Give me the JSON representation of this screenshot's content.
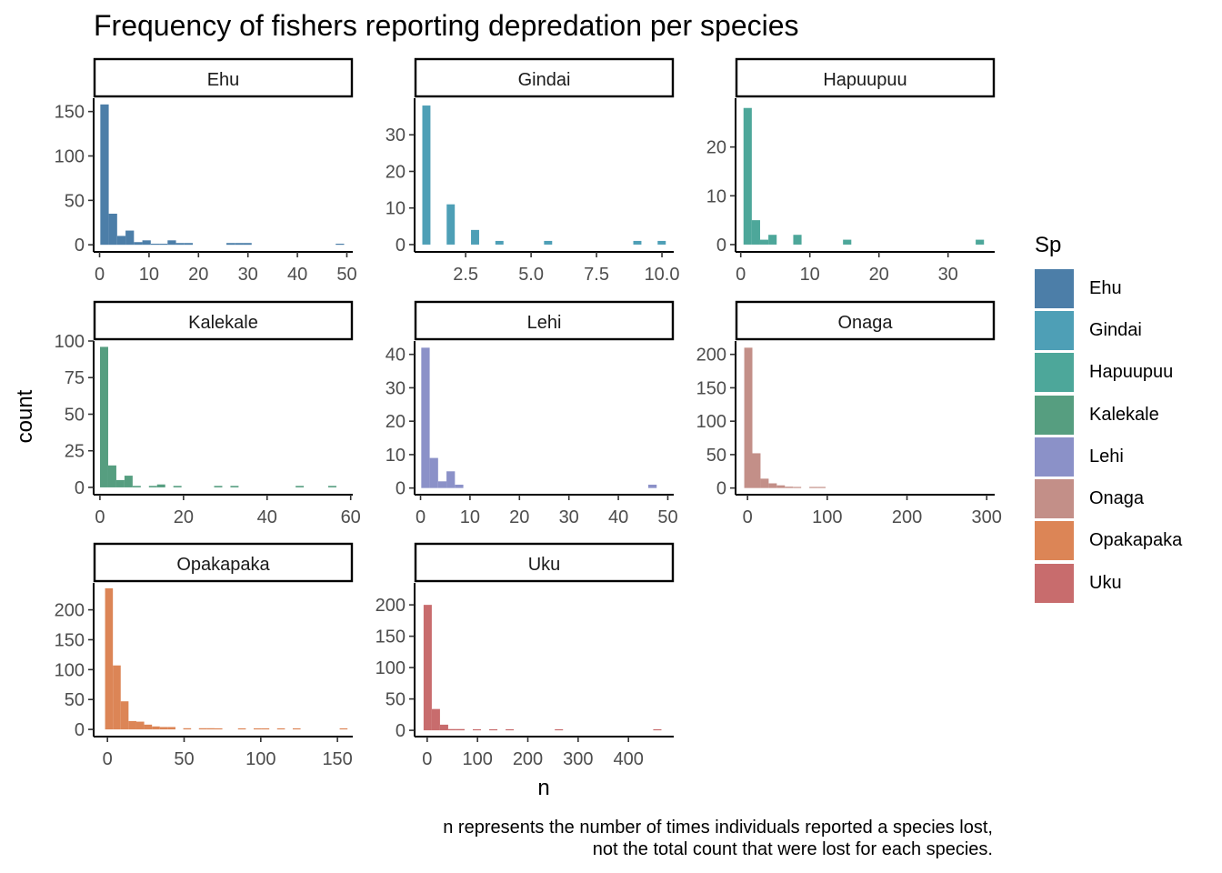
{
  "title": "Frequency of fishers reporting depredation per species",
  "axis_titles": {
    "x": "n",
    "y": "count"
  },
  "caption": [
    "n represents the number of times individuals reported a species lost,",
    "not the total count that were lost for each species."
  ],
  "legend": {
    "title": "Sp",
    "items": [
      {
        "label": "Ehu",
        "color": "#4C7EA8"
      },
      {
        "label": "Gindai",
        "color": "#4E9FB6"
      },
      {
        "label": "Hapuupuu",
        "color": "#4DA79A"
      },
      {
        "label": "Kalekale",
        "color": "#569E80"
      },
      {
        "label": "Lehi",
        "color": "#8B91C8"
      },
      {
        "label": "Onaga",
        "color": "#C38F88"
      },
      {
        "label": "Opakapaka",
        "color": "#DC8556"
      },
      {
        "label": "Uku",
        "color": "#C86C6D"
      }
    ]
  },
  "chart_data": [
    {
      "type": "bar",
      "panel": "Ehu",
      "color": "#4C7EA8",
      "xlabel": "n",
      "ylabel": "count",
      "xlim": [
        -1.2,
        51.2
      ],
      "ylim": [
        -8,
        165
      ],
      "xticks": [
        0,
        10,
        20,
        30,
        40,
        50
      ],
      "xtick_labels": [
        "0",
        "10",
        "20",
        "30",
        "40",
        "50"
      ],
      "yticks": [
        0,
        50,
        100,
        150
      ],
      "ytick_labels": [
        "0",
        "50",
        "100",
        "150"
      ],
      "bin_width": 1.7,
      "bin_start": 1,
      "counts": [
        158,
        35,
        10,
        16,
        3,
        5,
        1,
        1,
        5,
        2,
        2,
        0,
        0,
        0,
        0,
        2,
        2,
        2,
        0,
        0,
        0,
        0,
        0,
        0,
        0,
        0,
        0,
        0,
        1
      ]
    },
    {
      "type": "bar",
      "panel": "Gindai",
      "color": "#4E9FB6",
      "xlabel": "n",
      "ylabel": "count",
      "xlim": [
        0.55,
        10.45
      ],
      "ylim": [
        -2,
        40
      ],
      "xticks": [
        2.5,
        5.0,
        7.5,
        10.0
      ],
      "xtick_labels": [
        "2.5",
        "5.0",
        "7.5",
        "10.0"
      ],
      "yticks": [
        0,
        10,
        20,
        30
      ],
      "ytick_labels": [
        "0",
        "10",
        "20",
        "30"
      ],
      "bin_width": 0.31,
      "bin_start": 1,
      "counts": [
        38,
        0,
        0,
        11,
        0,
        0,
        4,
        0,
        0,
        1,
        0,
        0,
        0,
        0,
        0,
        1,
        0,
        0,
        0,
        0,
        0,
        0,
        0,
        0,
        0,
        0,
        1,
        0,
        0,
        1
      ]
    },
    {
      "type": "bar",
      "panel": "Hapuupuu",
      "color": "#4DA79A",
      "xlabel": "n",
      "ylabel": "count",
      "xlim": [
        -0.75,
        36.75
      ],
      "ylim": [
        -1.5,
        30
      ],
      "xticks": [
        0,
        10,
        20,
        30
      ],
      "xtick_labels": [
        "0",
        "10",
        "20",
        "30"
      ],
      "yticks": [
        0,
        10,
        20
      ],
      "ytick_labels": [
        "0",
        "10",
        "20"
      ],
      "bin_width": 1.2,
      "bin_start": 1,
      "counts": [
        28,
        5,
        1,
        2,
        0,
        0,
        2,
        0,
        0,
        0,
        0,
        0,
        1,
        0,
        0,
        0,
        0,
        0,
        0,
        0,
        0,
        0,
        0,
        0,
        0,
        0,
        0,
        0,
        1
      ]
    },
    {
      "type": "bar",
      "panel": "Kalekale",
      "color": "#569E80",
      "xlabel": "n",
      "ylabel": "count",
      "xlim": [
        -1.5,
        60.5
      ],
      "ylim": [
        -5,
        100
      ],
      "xticks": [
        0,
        20,
        40,
        60
      ],
      "xtick_labels": [
        "0",
        "20",
        "40",
        "60"
      ],
      "yticks": [
        0,
        25,
        50,
        75,
        100
      ],
      "ytick_labels": [
        "0",
        "25",
        "50",
        "75",
        "100"
      ],
      "bin_width": 1.95,
      "bin_start": 1,
      "counts": [
        96,
        15,
        5,
        8,
        1,
        0,
        1,
        2,
        0,
        1,
        0,
        0,
        0,
        0,
        1,
        0,
        1,
        0,
        0,
        0,
        0,
        0,
        0,
        0,
        1,
        0,
        0,
        0,
        1
      ]
    },
    {
      "type": "bar",
      "panel": "Lehi",
      "color": "#8B91C8",
      "xlabel": "n",
      "ylabel": "count",
      "xlim": [
        -1.2,
        51.2
      ],
      "ylim": [
        -2,
        44
      ],
      "xticks": [
        0,
        10,
        20,
        30,
        40,
        50
      ],
      "xtick_labels": [
        "0",
        "10",
        "20",
        "30",
        "40",
        "50"
      ],
      "yticks": [
        0,
        10,
        20,
        30,
        40
      ],
      "ytick_labels": [
        "0",
        "10",
        "20",
        "30",
        "40"
      ],
      "bin_width": 1.7,
      "bin_start": 1,
      "counts": [
        42,
        9,
        2,
        5,
        1,
        0,
        0,
        0,
        0,
        0,
        0,
        0,
        0,
        0,
        0,
        0,
        0,
        0,
        0,
        0,
        0,
        0,
        0,
        0,
        0,
        0,
        0,
        1
      ]
    },
    {
      "type": "bar",
      "panel": "Onaga",
      "color": "#C38F88",
      "xlabel": "n",
      "ylabel": "count",
      "xlim": [
        -15,
        310
      ],
      "ylim": [
        -10,
        220
      ],
      "xticks": [
        0,
        100,
        200,
        300
      ],
      "xtick_labels": [
        "0",
        "100",
        "200",
        "300"
      ],
      "yticks": [
        0,
        50,
        100,
        150,
        200
      ],
      "ytick_labels": [
        "0",
        "50",
        "100",
        "150",
        "200"
      ],
      "bin_width": 10.2,
      "bin_start": 1,
      "counts": [
        210,
        52,
        14,
        7,
        4,
        2,
        1,
        0,
        1,
        1,
        0,
        0,
        0,
        0,
        0,
        0,
        0,
        0,
        0,
        0,
        0,
        0,
        0,
        0,
        0,
        0,
        0,
        0,
        0
      ]
    },
    {
      "type": "bar",
      "panel": "Opakapaka",
      "color": "#DC8556",
      "xlabel": "n",
      "ylabel": "count",
      "xlim": [
        -9,
        160
      ],
      "ylim": [
        -12,
        245
      ],
      "xticks": [
        0,
        50,
        100,
        150
      ],
      "xtick_labels": [
        "0",
        "50",
        "100",
        "150"
      ],
      "yticks": [
        0,
        50,
        100,
        150,
        200
      ],
      "ytick_labels": [
        "0",
        "50",
        "100",
        "150",
        "200"
      ],
      "bin_width": 5.1,
      "bin_start": 1,
      "counts": [
        236,
        107,
        47,
        14,
        13,
        8,
        5,
        4,
        4,
        0,
        2,
        0,
        2,
        2,
        1,
        0,
        0,
        1,
        0,
        1,
        1,
        0,
        1,
        0,
        1,
        0,
        0,
        0,
        0,
        0,
        1
      ]
    },
    {
      "type": "bar",
      "panel": "Uku",
      "color": "#C86C6D",
      "xlabel": "n",
      "ylabel": "count",
      "xlim": [
        -25,
        490
      ],
      "ylim": [
        -10,
        235
      ],
      "xticks": [
        0,
        100,
        200,
        300,
        400
      ],
      "xtick_labels": [
        "0",
        "100",
        "200",
        "300",
        "400"
      ],
      "yticks": [
        0,
        50,
        100,
        150,
        200
      ],
      "ytick_labels": [
        "0",
        "50",
        "100",
        "150",
        "200"
      ],
      "bin_width": 16.3,
      "bin_start": 1,
      "counts": [
        200,
        34,
        9,
        2,
        2,
        0,
        1,
        0,
        1,
        0,
        1,
        0,
        0,
        0,
        0,
        0,
        1,
        0,
        0,
        0,
        0,
        0,
        0,
        0,
        0,
        0,
        0,
        0,
        1
      ]
    }
  ]
}
